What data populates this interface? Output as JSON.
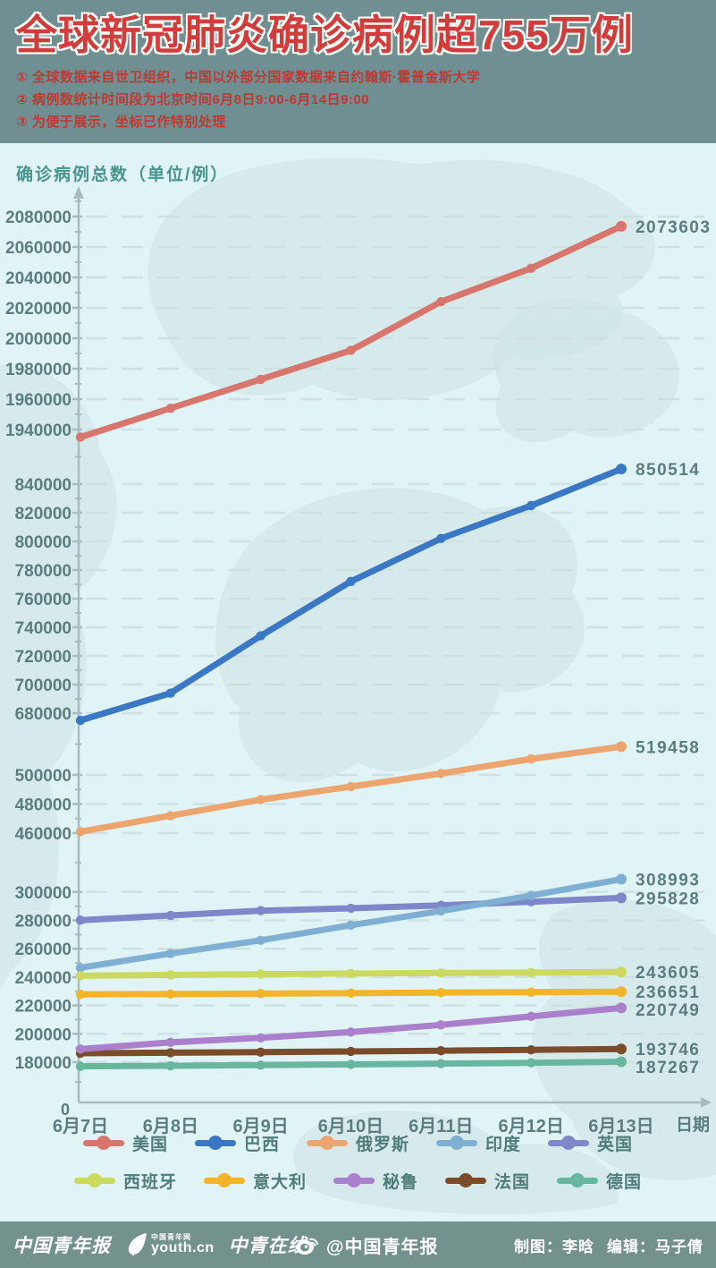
{
  "palette": {
    "header_bg": "#6f8f93",
    "chart_bg": "#e0f3f5",
    "footer_bg": "#73918d",
    "title_color": "#d23c3c",
    "note_color": "#bc3a31",
    "axis_text": "#5b7d80",
    "axis_title_color": "#48948f",
    "grid_color": "#cfdfe0"
  },
  "header": {
    "title": "全球新冠肺炎确诊病例超755万例",
    "notes": [
      "① 全球数据来自世卫组织，中国以外部分国家数据来自约翰斯·霍普金斯大学",
      "② 病例数统计时间段为北京时间6月8日9:00-6月14日9:00",
      "③ 为便于展示，坐标已作特别处理"
    ]
  },
  "chart_data": {
    "type": "line",
    "title": "全球新冠肺炎确诊病例超755万例",
    "y_axis_title": "确诊病例总数（单位/例）",
    "x_axis_title": "日期",
    "origin_label": "0",
    "grid": "dashed",
    "legend_position": "bottom",
    "axis_broken": true,
    "x_categories": [
      "6月7日",
      "6月8日",
      "6月9日",
      "6月10日",
      "6月11日",
      "6月12日",
      "6月13日"
    ],
    "y_tick_sections": [
      [
        2080000,
        2060000,
        2040000,
        2020000,
        2000000,
        1980000,
        1960000,
        1940000
      ],
      [
        840000,
        820000,
        800000,
        780000,
        760000,
        740000,
        720000,
        700000,
        680000
      ],
      [
        500000,
        480000,
        460000
      ],
      [
        300000,
        280000,
        260000,
        240000,
        220000,
        200000,
        180000
      ]
    ],
    "series": [
      {
        "id": "usa",
        "name": "美国",
        "color": "#d8766d",
        "values": [
          1935000,
          1954000,
          1973000,
          1992000,
          2024000,
          2046000,
          2073603
        ],
        "end_label": "2073603"
      },
      {
        "id": "brazil",
        "name": "巴西",
        "color": "#3a77c5",
        "values": [
          675000,
          694000,
          734000,
          772000,
          802000,
          825000,
          850514
        ],
        "end_label": "850514"
      },
      {
        "id": "russia",
        "name": "俄罗斯",
        "color": "#eda56f",
        "values": [
          461000,
          472000,
          483000,
          492000,
          501000,
          511000,
          519458
        ],
        "end_label": "519458"
      },
      {
        "id": "india",
        "name": "印度",
        "color": "#7fb0d4",
        "values": [
          246628,
          256611,
          265928,
          276583,
          286579,
          297535,
          308993
        ],
        "end_label": "308993"
      },
      {
        "id": "uk",
        "name": "英国",
        "color": "#7e87c9",
        "values": [
          280100,
          283500,
          286800,
          288500,
          290600,
          293100,
          295828
        ],
        "end_label": "295828"
      },
      {
        "id": "spain",
        "name": "西班牙",
        "color": "#ccd95f",
        "values": [
          240978,
          241550,
          242100,
          242500,
          242900,
          243200,
          243605
        ],
        "end_label": "243605"
      },
      {
        "id": "italy",
        "name": "意大利",
        "color": "#f2b42a",
        "values": [
          234801,
          235000,
          235300,
          235600,
          236000,
          236300,
          236651
        ],
        "end_label": "236651"
      },
      {
        "id": "peru",
        "name": "秘鲁",
        "color": "#aa7fcb",
        "values": [
          191758,
          196515,
          199696,
          203736,
          208823,
          214788,
          220749
        ],
        "end_label": "220749"
      },
      {
        "id": "france",
        "name": "法国",
        "color": "#7b4c2a",
        "values": [
          190700,
          191100,
          191500,
          192000,
          192500,
          193100,
          193746
        ],
        "end_label": "193746"
      },
      {
        "id": "germany",
        "name": "德国",
        "color": "#68b69e",
        "values": [
          184000,
          184400,
          184900,
          185400,
          185900,
          186500,
          187267
        ],
        "end_label": "187267"
      }
    ]
  },
  "footer": {
    "logos": {
      "paper": "中国青年报",
      "site_small": "中国青年网",
      "site": "youth.cn",
      "online": "中青在线"
    },
    "weibo": "@中国青年报",
    "credits": {
      "drawing": "制图：李晗",
      "editor": "编辑：马子倩"
    }
  }
}
